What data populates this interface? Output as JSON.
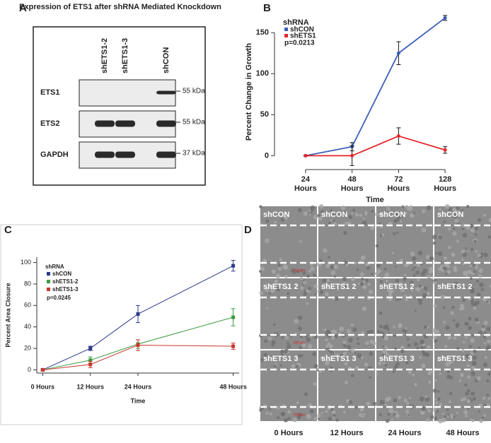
{
  "panel_labels": [
    "A",
    "B",
    "C",
    "D"
  ],
  "blot": {
    "title": "Expression of ETS1 after shRNA Mediated Knockdown",
    "lanes": [
      "shETS1-2",
      "shETS1-3",
      "shCON"
    ],
    "rows": [
      {
        "label": "ETS1",
        "marker": "55 kDa"
      },
      {
        "label": "ETS2",
        "marker": "55 kDa"
      },
      {
        "label": "GAPDH",
        "marker": "37 kDa"
      }
    ]
  },
  "chart_data": [
    {
      "type": "line",
      "y_label": "Percent Change in Growth",
      "x_label": "Time",
      "legend_title": "shRNA",
      "annotation": "p=0.0213",
      "categories": [
        "24 Hours",
        "48 Hours",
        "72 Hours",
        "128 Hours"
      ],
      "series": [
        {
          "name": "shCON",
          "color": "#3b5fb5",
          "values": [
            0,
            11,
            125,
            168
          ],
          "errors": [
            0,
            5,
            14,
            3
          ]
        },
        {
          "name": "shETS1",
          "color": "#e3262b",
          "values": [
            0,
            0,
            24,
            7
          ],
          "errors": [
            0,
            12,
            10,
            4
          ]
        }
      ],
      "ylim": [
        -10,
        170
      ],
      "yticks": [
        0,
        50,
        100,
        150
      ]
    },
    {
      "type": "line",
      "y_label": "Percent Area Closure",
      "x_label": "Time",
      "legend_title": "shRNA",
      "annotation": "p=0.0245",
      "x": [
        0,
        12,
        24,
        48
      ],
      "series": [
        {
          "name": "shCON",
          "color": "#2b3a8c",
          "values": [
            0,
            20,
            52,
            97
          ],
          "errors": [
            1,
            2,
            8,
            5
          ]
        },
        {
          "name": "shETS1-2",
          "color": "#3a9a3e",
          "values": [
            0,
            9,
            24,
            49
          ],
          "errors": [
            1,
            3,
            4,
            8
          ]
        },
        {
          "name": "shETS1-3",
          "color": "#c8372d",
          "values": [
            0,
            5,
            23,
            22
          ],
          "errors": [
            1,
            3,
            5,
            3
          ]
        }
      ],
      "xlim": [
        -1.5,
        49.5
      ],
      "xticks": [
        {
          "value": 0,
          "label": "0 Hours"
        },
        {
          "value": 12,
          "label": "12 Hours"
        },
        {
          "value": 24,
          "label": "24 Hours"
        },
        {
          "value": 48,
          "label": "48 Hours"
        }
      ],
      "ylim": [
        -3,
        105
      ],
      "yticks": [
        0,
        20,
        40,
        60,
        80,
        100
      ]
    }
  ],
  "micrographs": {
    "row_labels": [
      "shCON",
      "shETS1 2",
      "shETS1 3"
    ],
    "column_labels": [
      "0 Hours",
      "12 Hours",
      "24 Hours",
      "48 Hours"
    ],
    "scale_bar": "200 µm"
  }
}
